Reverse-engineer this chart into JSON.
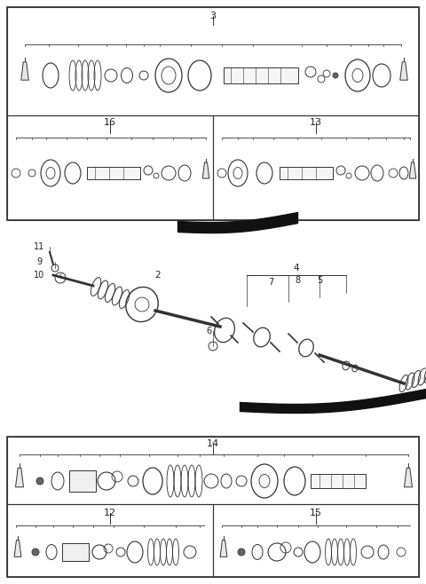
{
  "bg_color": "#ffffff",
  "line_color": "#333333",
  "text_color": "#222222",
  "fig_w": 4.8,
  "fig_h": 6.58,
  "dpi": 100
}
